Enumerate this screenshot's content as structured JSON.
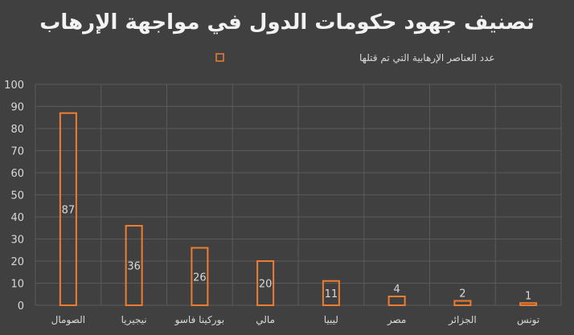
{
  "chart_data": {
    "type": "bar",
    "title": "تصنيف جهود حكومات الدول في مواجهة الإرهاب",
    "legend": {
      "position": "top",
      "entries": [
        "عدد العناصر الإرهابية التي تم قتلها"
      ]
    },
    "categories": [
      "الصومال",
      "نيجيريا",
      "بوركينا فاسو",
      "مالي",
      "ليبيا",
      "مصر",
      "الجزائر",
      "تونس"
    ],
    "series": [
      {
        "name": "عدد العناصر الإرهابية التي تم قتلها",
        "values": [
          87,
          36,
          26,
          20,
          11,
          4,
          2,
          1
        ]
      }
    ],
    "y_ticks": [
      "0",
      "10",
      "20",
      "30",
      "40",
      "50",
      "60",
      "70",
      "80",
      "90",
      "100"
    ],
    "ylim": [
      0,
      100
    ],
    "grid": {
      "horizontal": true,
      "vertical": true
    },
    "colors": {
      "bar_stroke": "#ed7d31",
      "background": "#404040",
      "grid": "#5a5a5a"
    },
    "data_labels": true
  }
}
